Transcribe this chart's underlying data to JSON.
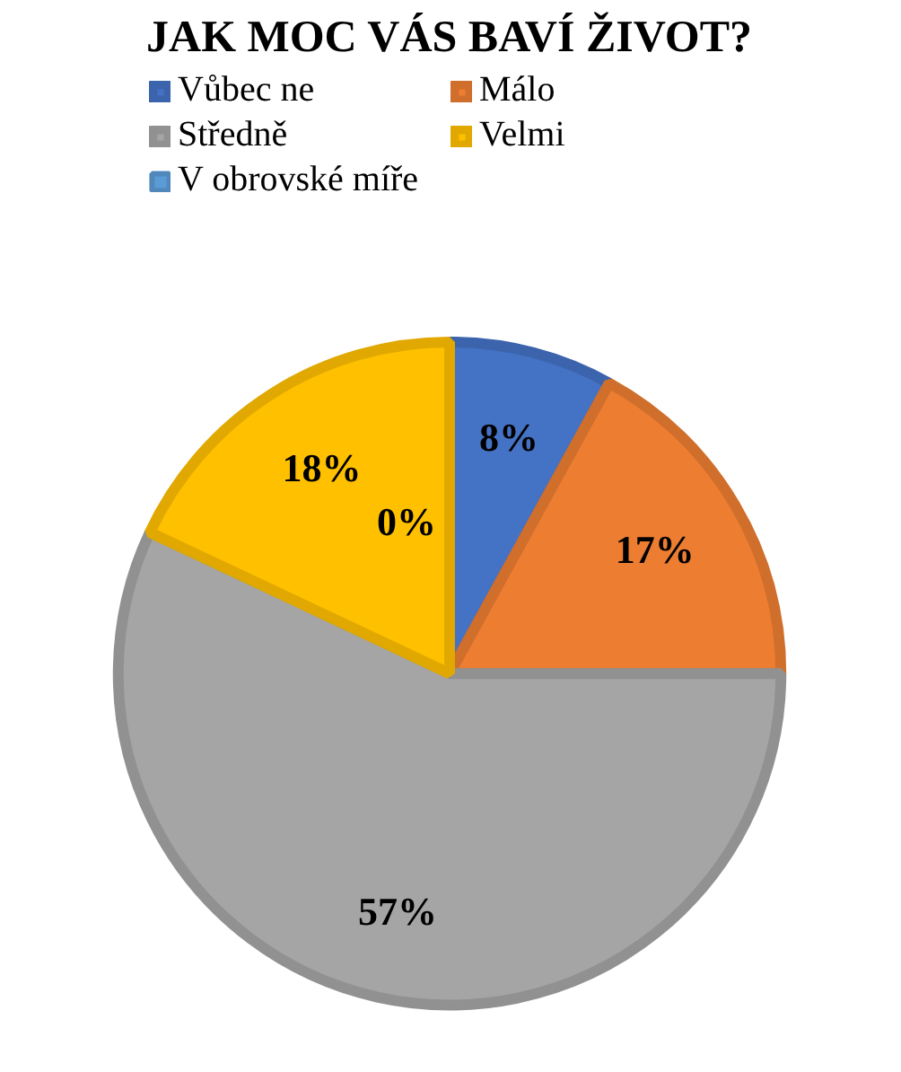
{
  "chart_data": {
    "type": "pie",
    "title": "JAK MOC VÁS BAVÍ ŽIVOT?",
    "categories": [
      "Vůbec ne",
      "Málo",
      "Středně",
      "Velmi",
      "V obrovské míře"
    ],
    "values": [
      8,
      17,
      57,
      18,
      0
    ],
    "colors": [
      "#4472c4",
      "#ed7d31",
      "#a5a5a5",
      "#ffc000",
      "#5b9bd5"
    ],
    "value_labels": [
      "8%",
      "17%",
      "57%",
      "18%",
      "0%"
    ],
    "legend": "top"
  }
}
